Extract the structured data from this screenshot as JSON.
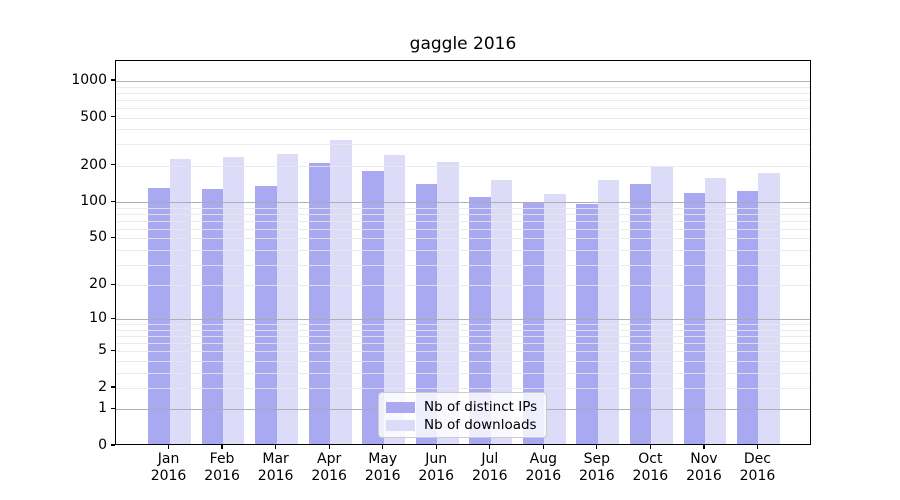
{
  "chart_data": {
    "type": "bar",
    "title": "gaggle 2016",
    "categories": [
      "Jan",
      "Feb",
      "Mar",
      "Apr",
      "May",
      "Jun",
      "Jul",
      "Aug",
      "Sep",
      "Oct",
      "Nov",
      "Dec"
    ],
    "x_tick_year": "2016",
    "series": [
      {
        "name": "Nb of distinct IPs",
        "color": "#a9a9f1",
        "values": [
          132,
          129,
          137,
          213,
          182,
          141,
          111,
          98,
          97,
          141,
          119,
          124
        ]
      },
      {
        "name": "Nb of downloads",
        "color": "#dcdcf8",
        "values": [
          226,
          237,
          250,
          328,
          246,
          217,
          152,
          118,
          152,
          196,
          160,
          174
        ]
      }
    ],
    "yscale": "log1p",
    "y_ticks": [
      0,
      1,
      2,
      5,
      10,
      20,
      50,
      100,
      200,
      500,
      1000
    ],
    "ylim": [
      0,
      1468
    ],
    "grid": {
      "horizontal": true,
      "major_at": [
        1,
        10,
        100,
        1000
      ],
      "minor_decade_steps": [
        2,
        3,
        4,
        5,
        6,
        7,
        8,
        9
      ]
    },
    "legend": {
      "position": "inside-lower-center"
    }
  },
  "colors": {
    "background": "#ffffff",
    "axis": "#000000",
    "major_grid": "#b2b2b2",
    "minor_grid": "#e7e7e7",
    "bar_dark": "#a9a9f1",
    "bar_light": "#dcdcf8",
    "legend_border": "#cccccc"
  }
}
